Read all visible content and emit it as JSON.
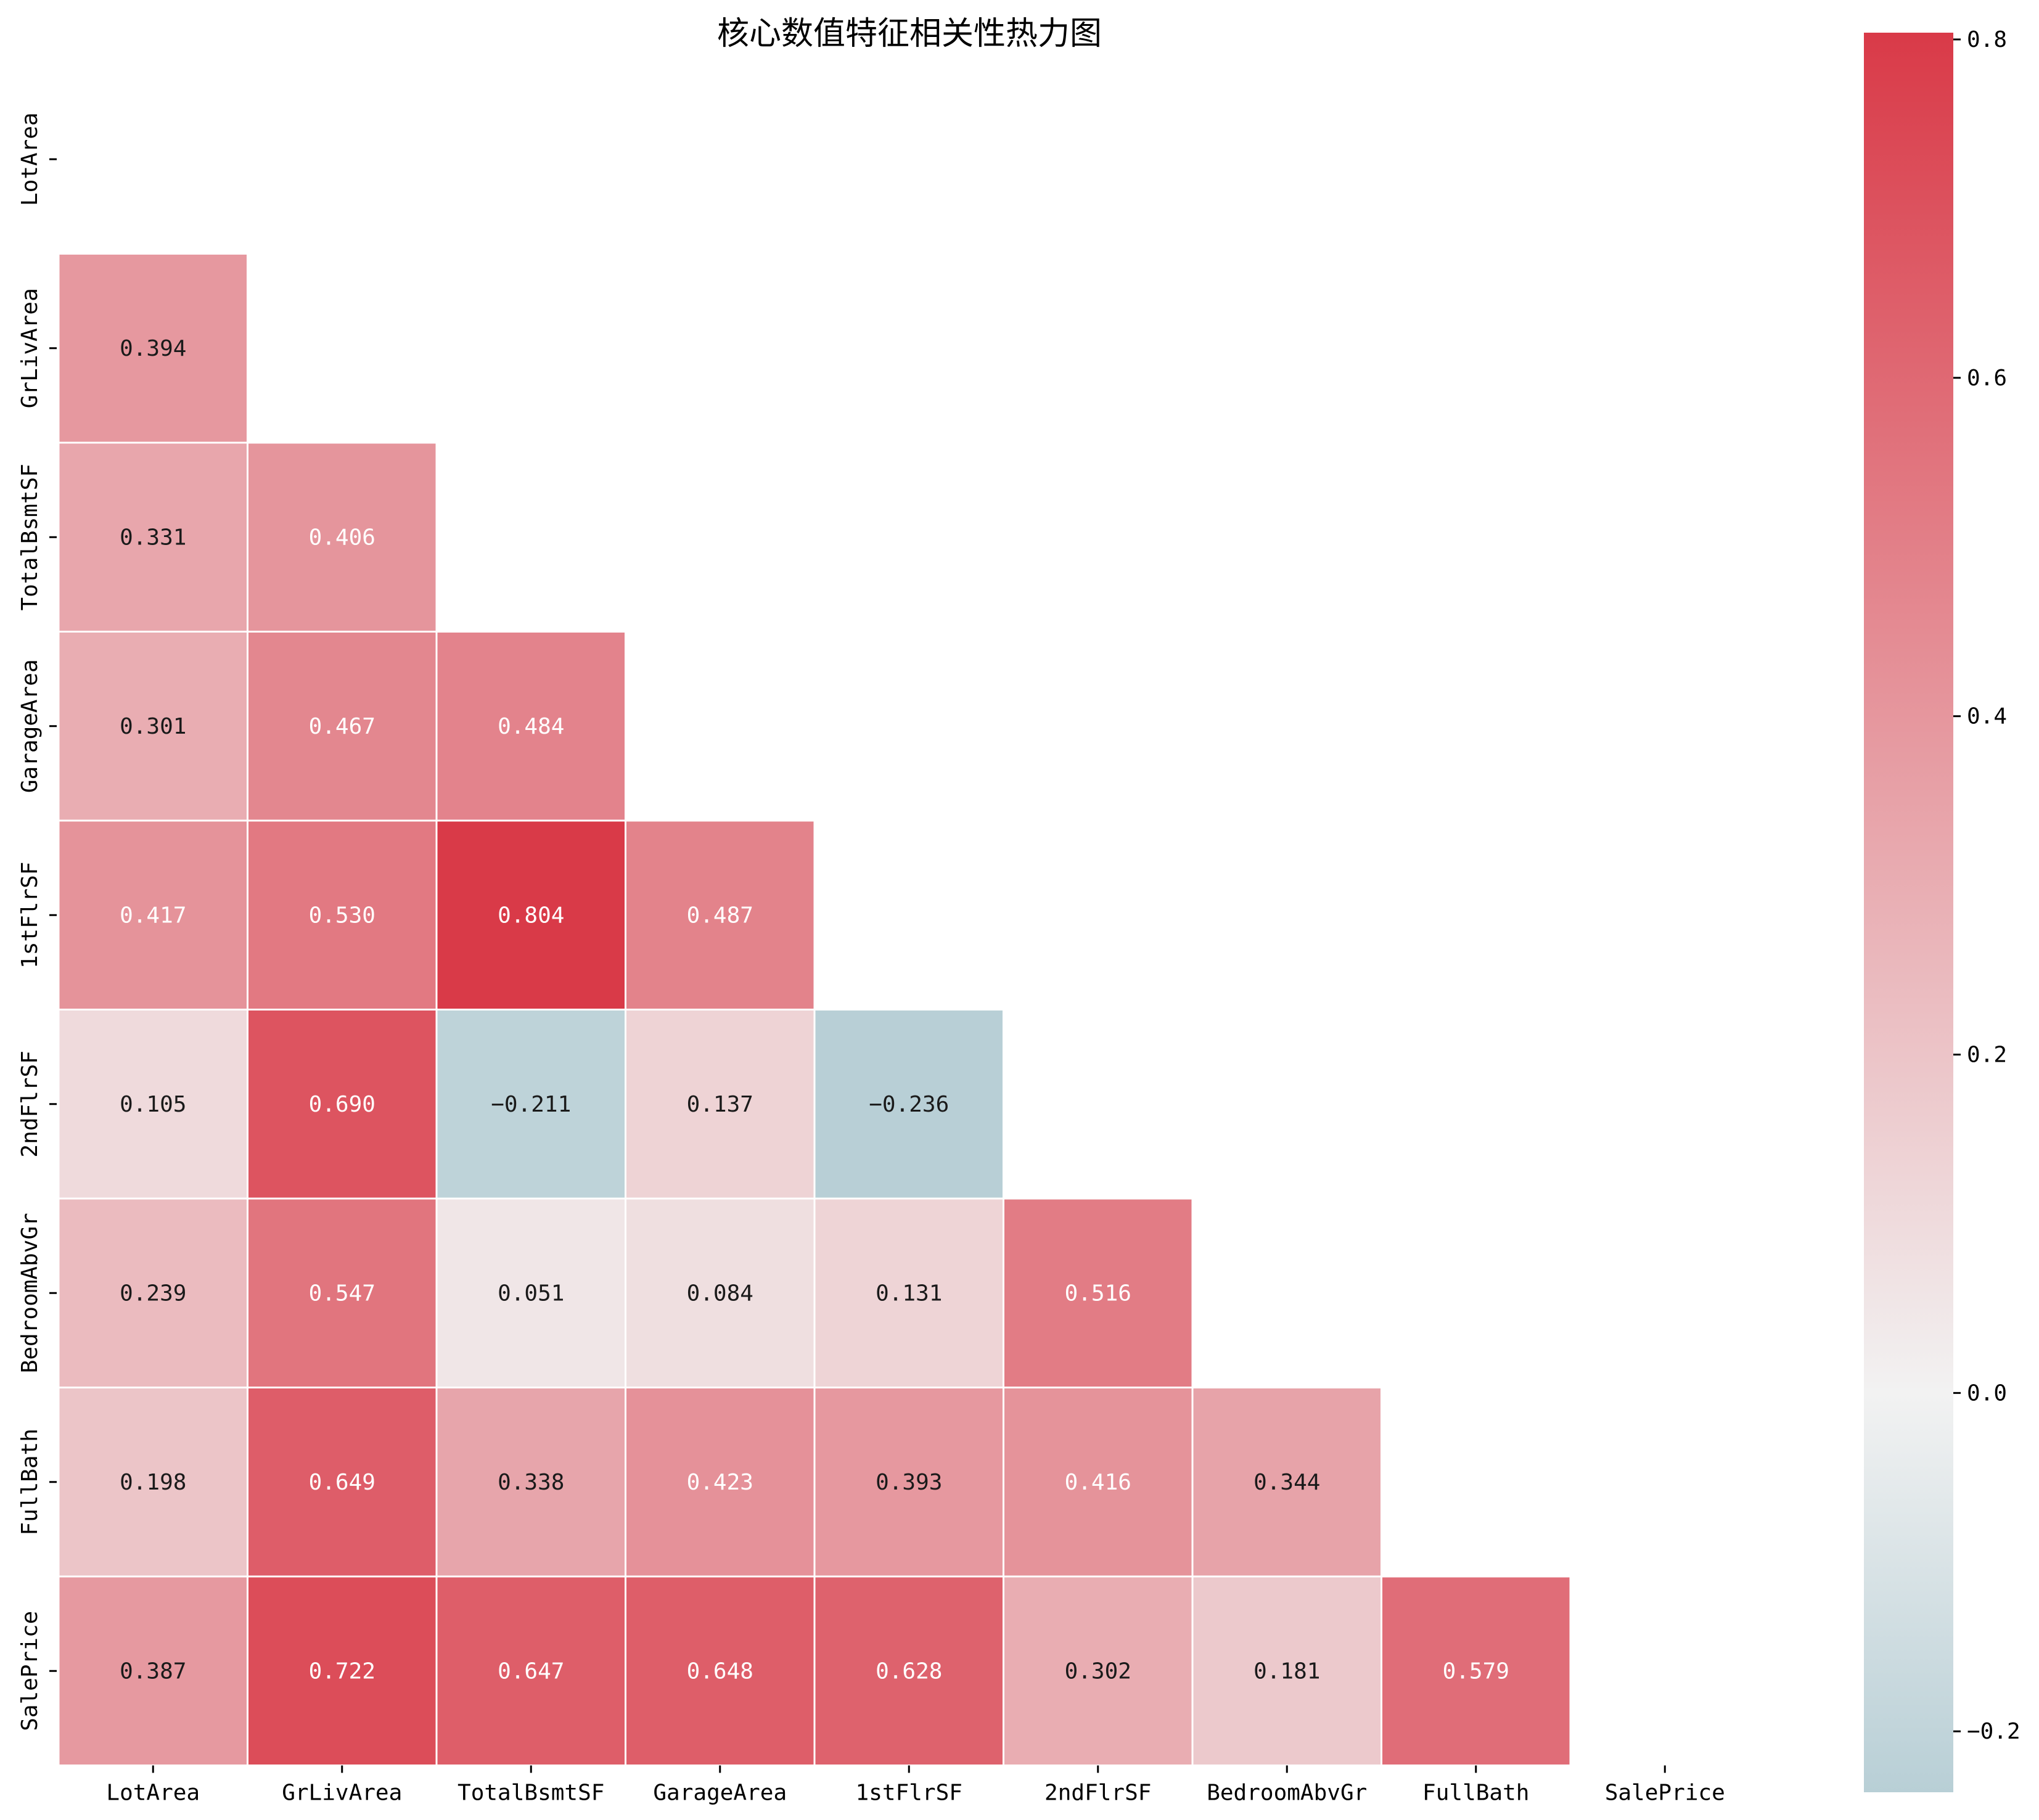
{
  "chart_data": {
    "type": "heatmap",
    "title": "核心数值特征相关性热力图",
    "variables": [
      "LotArea",
      "GrLivArea",
      "TotalBsmtSF",
      "GarageArea",
      "1stFlrSF",
      "2ndFlrSF",
      "BedroomAbvGr",
      "FullBath",
      "SalePrice"
    ],
    "mask": "upper-triangle-including-diagonal",
    "lower_triangle": [
      [],
      [
        "0.394"
      ],
      [
        "0.331",
        "0.406"
      ],
      [
        "0.301",
        "0.467",
        "0.484"
      ],
      [
        "0.417",
        "0.530",
        "0.804",
        "0.487"
      ],
      [
        "0.105",
        "0.690",
        "−0.211",
        "0.137",
        "−0.236"
      ],
      [
        "0.239",
        "0.547",
        "0.051",
        "0.084",
        "0.131",
        "0.516"
      ],
      [
        "0.198",
        "0.649",
        "0.338",
        "0.423",
        "0.393",
        "0.416",
        "0.344"
      ],
      [
        "0.387",
        "0.722",
        "0.647",
        "0.648",
        "0.628",
        "0.302",
        "0.181",
        "0.579"
      ]
    ],
    "colorbar": {
      "vmin": -0.236,
      "vmax": 0.804,
      "ticks": [
        0.8,
        0.6,
        0.4,
        0.2,
        0.0,
        -0.2
      ],
      "tick_labels": [
        "0.8",
        "0.6",
        "0.4",
        "0.2",
        "0.0",
        "−0.2"
      ],
      "colors": {
        "negative": "#b8cfd6",
        "zero": "#f2f2f2",
        "positive": "#d93a48"
      }
    }
  }
}
